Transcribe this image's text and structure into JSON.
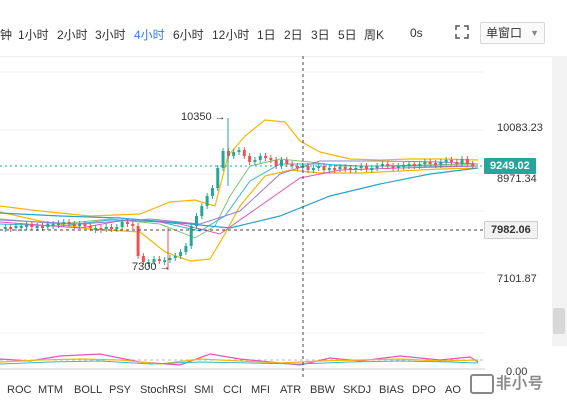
{
  "toolbar": {
    "timeframes": [
      "钟",
      "1小时",
      "2小时",
      "3小时",
      "4小时",
      "6小时",
      "12小时",
      "1日",
      "2日",
      "3日",
      "5日",
      "周K"
    ],
    "active_timeframe": "4小时",
    "refresh_label": "0s",
    "window_mode": "单窗口"
  },
  "chart": {
    "price_labels": [
      "10083.23",
      "8971.34",
      "7101.87"
    ],
    "current_price": "9249.02",
    "crosshair_price": "7982.06",
    "high_annotation": "10350 →",
    "low_annotation": "7300 →",
    "indicator_zero": "0.00",
    "colors": {
      "up": "#26a69a",
      "down": "#ef5350",
      "current_price_bg": "#26a69a",
      "crosshair_bg": "#f2f2f2",
      "boll_band": "#f5b800",
      "active_tab": "#2f80ed"
    }
  },
  "indicator_tabs": [
    "ROC",
    "MTM",
    "BOLL",
    "PSY",
    "StochRSI",
    "SMI",
    "CCI",
    "MFI",
    "ATR",
    "BBW",
    "SKDJ",
    "BIAS",
    "DPO",
    "AO"
  ],
  "watermark": "非小号"
}
